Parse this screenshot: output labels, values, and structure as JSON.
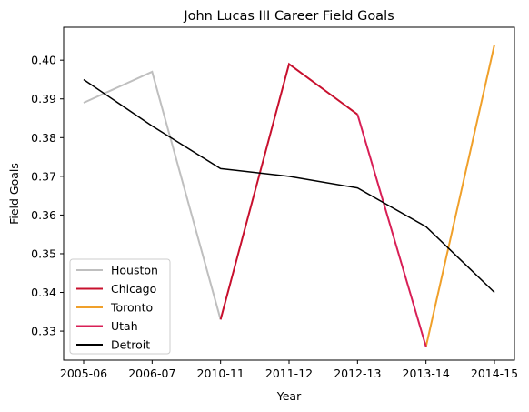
{
  "chart_data": {
    "type": "line",
    "title": "John Lucas III Career Field Goals",
    "xlabel": "Year",
    "ylabel": "Field Goals",
    "categories": [
      "2005-06",
      "2006-07",
      "2010-11",
      "2011-12",
      "2012-13",
      "2013-14",
      "2014-15"
    ],
    "ylim": [
      0.3225,
      0.4085
    ],
    "yticks": [
      "0.33",
      "0.34",
      "0.35",
      "0.36",
      "0.37",
      "0.38",
      "0.39",
      "0.40"
    ],
    "grid": false,
    "legend_position": "lower-left",
    "series": [
      {
        "name": "Houston",
        "color": "#bfbfbf",
        "points": [
          [
            0,
            0.389
          ],
          [
            1,
            0.397
          ],
          [
            2,
            0.333
          ]
        ]
      },
      {
        "name": "Chicago",
        "color": "#c8102e",
        "points": [
          [
            2,
            0.333
          ],
          [
            3,
            0.399
          ],
          [
            4,
            0.386
          ]
        ]
      },
      {
        "name": "Toronto",
        "color": "#f0a02a",
        "points": [
          [
            5,
            0.326
          ],
          [
            6,
            0.404
          ]
        ]
      },
      {
        "name": "Utah",
        "color": "#d81f56",
        "points": [
          [
            4,
            0.386
          ],
          [
            5,
            0.326
          ]
        ]
      },
      {
        "name": "Detroit",
        "color": "#000000",
        "points": [
          [
            0,
            0.395
          ],
          [
            1,
            0.383
          ],
          [
            2,
            0.372
          ],
          [
            3,
            0.37
          ],
          [
            4,
            0.367
          ],
          [
            5,
            0.357
          ],
          [
            6,
            0.34
          ]
        ]
      }
    ]
  }
}
